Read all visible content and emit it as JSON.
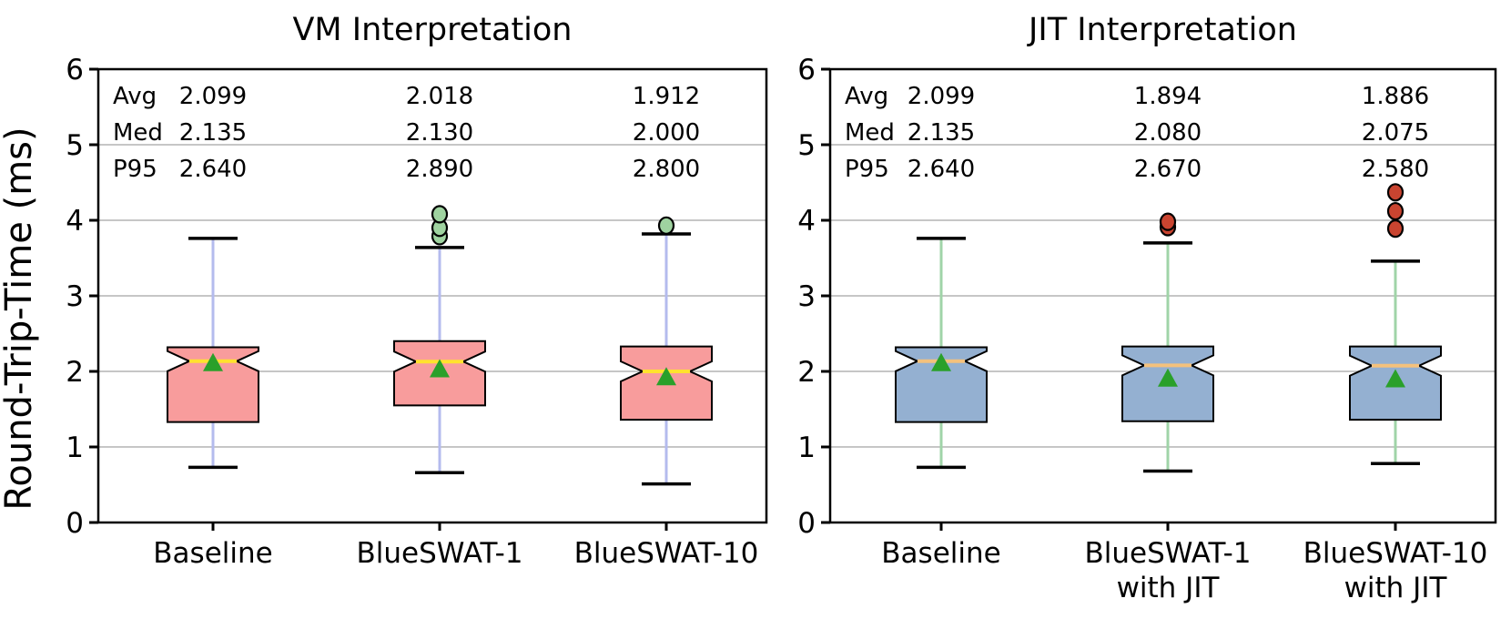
{
  "figure": {
    "background": "#ffffff",
    "text_color": "#000000"
  },
  "chart_data": [
    {
      "type": "box",
      "title": "VM Interpretation",
      "ylabel": "Round-Trip-Time (ms)",
      "ylim": [
        0,
        6
      ],
      "yticks": [
        0,
        1,
        2,
        3,
        4,
        5,
        6
      ],
      "grid": true,
      "legend": "none",
      "stats_row_labels": [
        "Avg",
        "Med",
        "P95"
      ],
      "colors": {
        "box_fill": "#f89c9c",
        "box_edge": "#000000",
        "median_line": "#ffe22e",
        "whisker": "#b4bbee",
        "cap": "#000000",
        "mean_marker": "#2aa02a",
        "outlier_fill": "#9fd3a0",
        "outlier_edge": "#000000",
        "gridline": "#c6c6c6"
      },
      "series": [
        {
          "label_lines": [
            "Baseline"
          ],
          "stats": {
            "avg": "2.099",
            "med": "2.135",
            "p95": "2.640"
          },
          "whisker_low": 0.73,
          "q1": 1.33,
          "median": 2.135,
          "q3": 2.32,
          "whisker_high": 3.76,
          "mean": 2.099,
          "outliers": []
        },
        {
          "label_lines": [
            "BlueSWAT-1"
          ],
          "stats": {
            "avg": "2.018",
            "med": "2.130",
            "p95": "2.890"
          },
          "whisker_low": 0.66,
          "q1": 1.55,
          "median": 2.13,
          "q3": 2.4,
          "whisker_high": 3.64,
          "mean": 2.018,
          "outliers": [
            3.79,
            3.9,
            4.08
          ]
        },
        {
          "label_lines": [
            "BlueSWAT-10"
          ],
          "stats": {
            "avg": "1.912",
            "med": "2.000",
            "p95": "2.800"
          },
          "whisker_low": 0.51,
          "q1": 1.36,
          "median": 2.0,
          "q3": 2.33,
          "whisker_high": 3.82,
          "mean": 1.912,
          "outliers": [
            3.93
          ]
        }
      ]
    },
    {
      "type": "box",
      "title": "JIT Interpretation",
      "ylabel": "",
      "ylim": [
        0,
        6
      ],
      "yticks": [
        0,
        1,
        2,
        3,
        4,
        5,
        6
      ],
      "grid": true,
      "legend": "none",
      "stats_row_labels": [
        "Avg",
        "Med",
        "P95"
      ],
      "colors": {
        "box_fill": "#94b0d1",
        "box_edge": "#000000",
        "median_line": "#f4c17c",
        "whisker": "#a0d4a8",
        "cap": "#000000",
        "mean_marker": "#2aa02a",
        "outlier_fill": "#c94430",
        "outlier_edge": "#000000",
        "gridline": "#c6c6c6"
      },
      "series": [
        {
          "label_lines": [
            "Baseline"
          ],
          "stats": {
            "avg": "2.099",
            "med": "2.135",
            "p95": "2.640"
          },
          "whisker_low": 0.73,
          "q1": 1.33,
          "median": 2.135,
          "q3": 2.32,
          "whisker_high": 3.76,
          "mean": 2.099,
          "outliers": []
        },
        {
          "label_lines": [
            "BlueSWAT-1",
            "with JIT"
          ],
          "stats": {
            "avg": "1.894",
            "med": "2.080",
            "p95": "2.670"
          },
          "whisker_low": 0.68,
          "q1": 1.34,
          "median": 2.08,
          "q3": 2.33,
          "whisker_high": 3.7,
          "mean": 1.894,
          "outliers": [
            3.91,
            3.98
          ]
        },
        {
          "label_lines": [
            "BlueSWAT-10",
            "with JIT"
          ],
          "stats": {
            "avg": "1.886",
            "med": "2.075",
            "p95": "2.580"
          },
          "whisker_low": 0.78,
          "q1": 1.36,
          "median": 2.075,
          "q3": 2.33,
          "whisker_high": 3.46,
          "mean": 1.886,
          "outliers": [
            3.89,
            4.12,
            4.37
          ]
        }
      ]
    }
  ]
}
